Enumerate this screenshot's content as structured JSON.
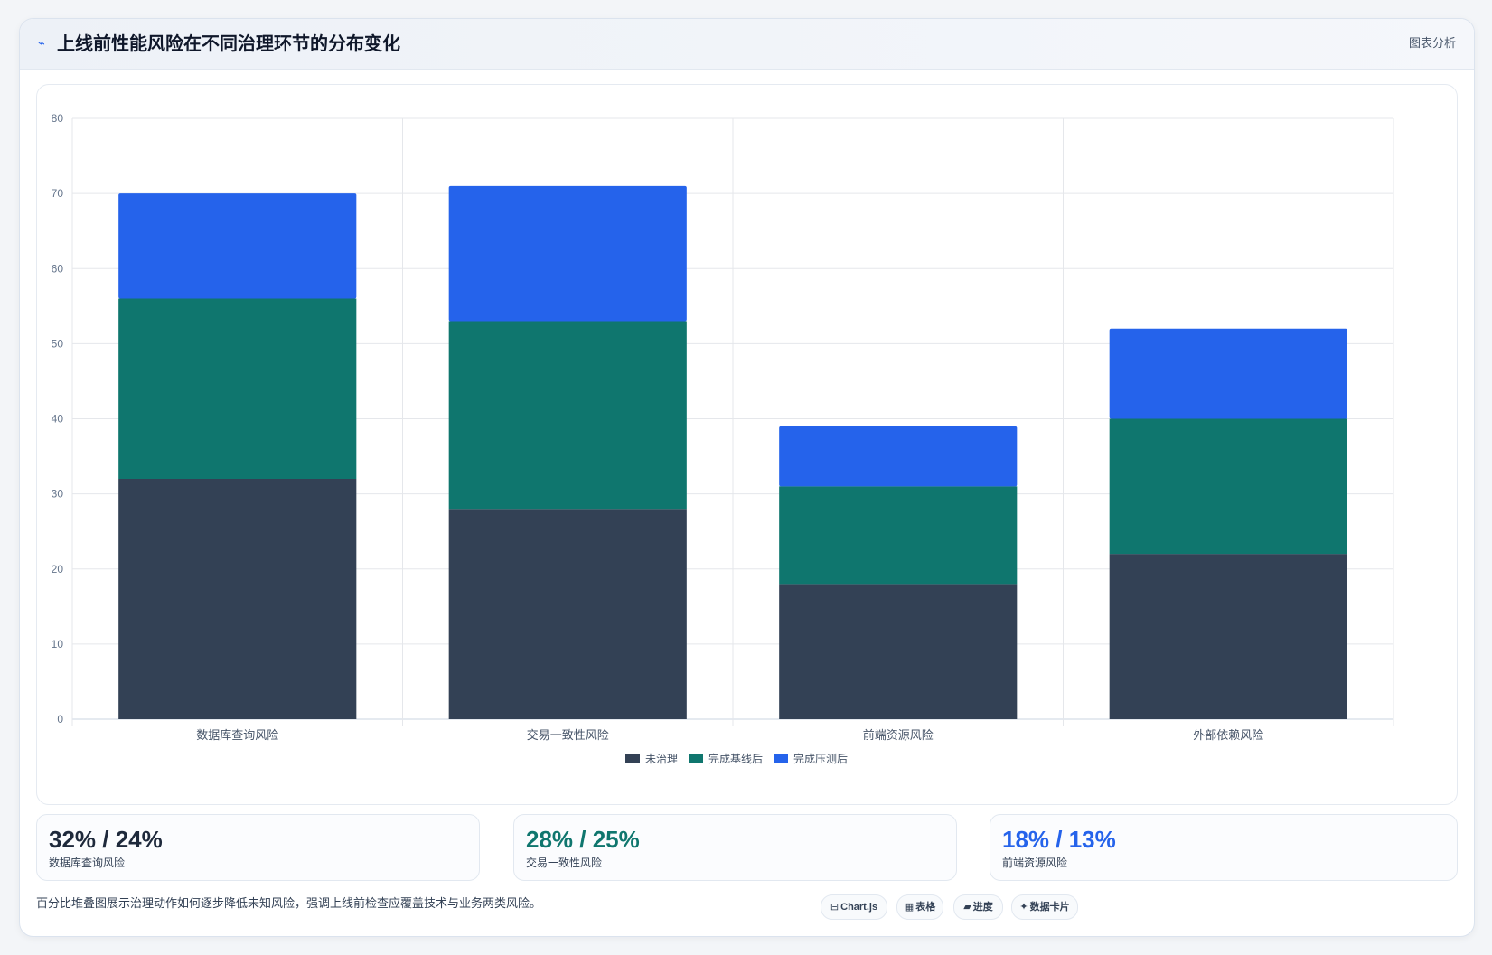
{
  "header": {
    "icon": "trend-icon",
    "title": "上线前性能风险在不同治理环节的分布变化",
    "tag": "图表分析"
  },
  "chart_data": {
    "type": "bar",
    "stacked": true,
    "categories": [
      "数据库查询风险",
      "交易一致性风险",
      "前端资源风险",
      "外部依赖风险"
    ],
    "series": [
      {
        "name": "未治理",
        "color": "#334155",
        "values": [
          32,
          28,
          18,
          22
        ]
      },
      {
        "name": "完成基线后",
        "color": "#0f766e",
        "values": [
          24,
          25,
          13,
          18
        ]
      },
      {
        "name": "完成压测后",
        "color": "#2563eb",
        "values": [
          14,
          18,
          8,
          12
        ]
      }
    ],
    "ylim": [
      0,
      80
    ],
    "yticks": [
      0,
      10,
      20,
      30,
      40,
      50,
      60,
      70,
      80
    ],
    "grid": true,
    "legend_position": "bottom"
  },
  "stats": [
    {
      "value": "32% / 24%",
      "label": "数据库查询风险",
      "color": "#1e293b"
    },
    {
      "value": "28% / 25%",
      "label": "交易一致性风险",
      "color": "#0f766e"
    },
    {
      "value": "18% / 13%",
      "label": "前端资源风险",
      "color": "#2563eb"
    }
  ],
  "footer": {
    "note": "百分比堆叠图展示治理动作如何逐步降低未知风险，强调上线前检查应覆盖技术与业务两类风险。",
    "pills": [
      {
        "icon": "chart-icon",
        "glyph": "⊟",
        "label": "Chart.js"
      },
      {
        "icon": "table-icon",
        "glyph": "▦",
        "label": "表格"
      },
      {
        "icon": "progress-icon",
        "glyph": "▰",
        "label": "进度"
      },
      {
        "icon": "sparkle-icon",
        "glyph": "✦",
        "label": "数据卡片"
      }
    ]
  }
}
